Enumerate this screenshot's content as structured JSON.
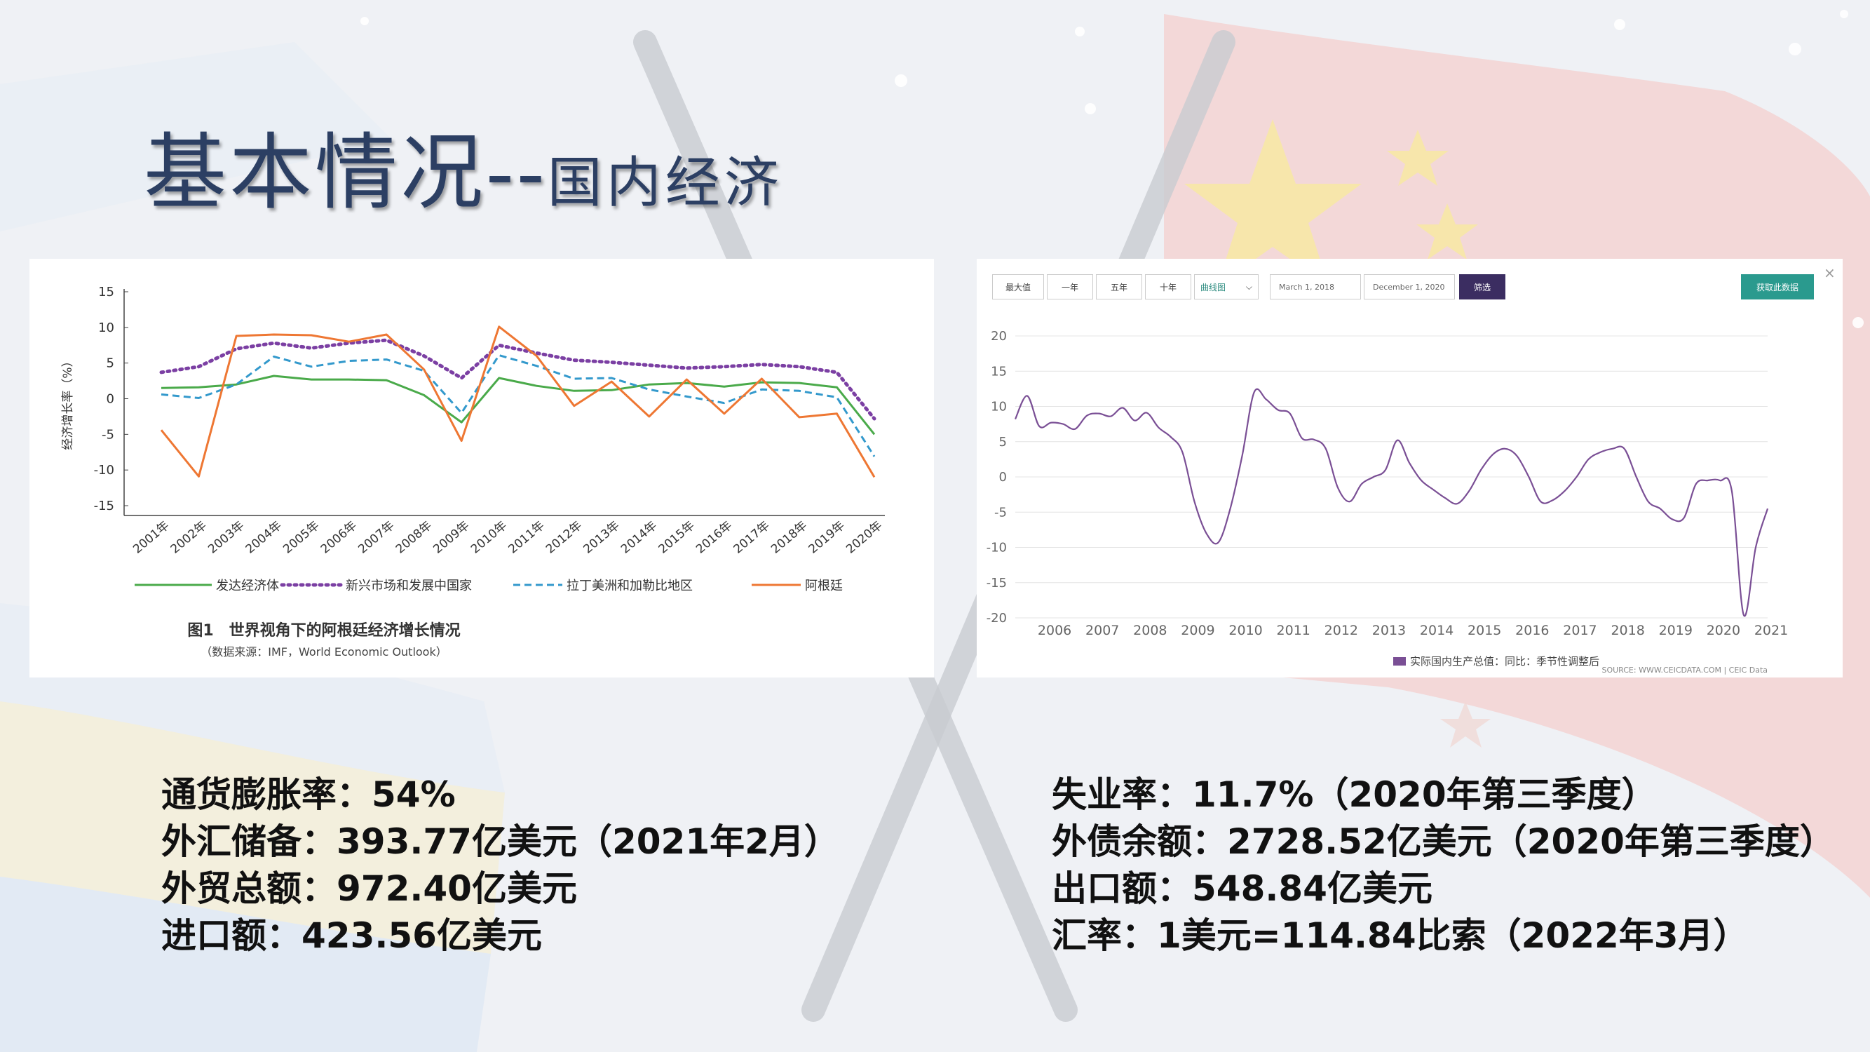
{
  "slide": {
    "title_main": "基本情况--",
    "title_sub": "国内经济"
  },
  "left_figure": {
    "ylabel": "经济增长率（%）",
    "caption": "图1　世界视角下的阿根廷经济增长情况",
    "source": "（数据来源：IMF，World Economic Outlook）"
  },
  "right_figure": {
    "toolbar": {
      "btn_max": "最大值",
      "btn_1y": "一年",
      "btn_5y": "五年",
      "btn_10y": "十年",
      "chart_type_select": "曲线图",
      "start_date": "March 1, 2018",
      "end_date": "December 1, 2020",
      "filter_button": "筛选",
      "get_data_button": "获取此数据"
    },
    "close_icon": "close-icon",
    "source": "SOURCE: WWW.CEICDATA.COM | CEIC Data"
  },
  "facts_left": [
    {
      "label": "通货膨胀率：",
      "value": "54%"
    },
    {
      "label": "外汇储备：",
      "value": "393.77亿美元（2021年2月）"
    },
    {
      "label": "外贸总额：",
      "value": "972.40亿美元"
    },
    {
      "label": "进口额：",
      "value": "423.56亿美元"
    }
  ],
  "facts_right": [
    {
      "label": "失业率：",
      "value": "11.7%（2020年第三季度）"
    },
    {
      "label": "外债余额：",
      "value": "2728.52亿美元（2020年第三季度）"
    },
    {
      "label": "出口额：",
      "value": "548.84亿美元"
    },
    {
      "label": "汇率：",
      "value": "1美元=114.84比索（2022年3月）"
    }
  ],
  "chart_data": [
    {
      "type": "line",
      "title": "图1　世界视角下的阿根廷经济增长情况",
      "ylabel": "经济增长率（%）",
      "ylim": [
        -15,
        15
      ],
      "yticks": [
        15,
        10,
        5,
        0,
        -5,
        -10,
        -15
      ],
      "categories": [
        "2001年",
        "2002年",
        "2003年",
        "2004年",
        "2005年",
        "2006年",
        "2007年",
        "2008年",
        "2009年",
        "2010年",
        "2011年",
        "2012年",
        "2013年",
        "2014年",
        "2015年",
        "2016年",
        "2017年",
        "2018年",
        "2019年",
        "2020年"
      ],
      "legend_position": "bottom",
      "series": [
        {
          "name": "发达经济体",
          "color": "#4aaa4a",
          "style": "solid",
          "values": [
            1.5,
            1.6,
            2.0,
            3.2,
            2.7,
            2.7,
            2.6,
            0.5,
            -3.3,
            2.9,
            1.8,
            1.1,
            1.2,
            2.0,
            2.2,
            1.7,
            2.3,
            2.2,
            1.6,
            -5.0
          ]
        },
        {
          "name": "新兴市场和发展中国家",
          "color": "#7b3fa3",
          "style": "dotted",
          "values": [
            3.7,
            4.5,
            7.0,
            7.8,
            7.1,
            7.8,
            8.2,
            6.0,
            2.9,
            7.5,
            6.4,
            5.4,
            5.1,
            4.7,
            4.3,
            4.5,
            4.8,
            4.5,
            3.7,
            -2.8
          ]
        },
        {
          "name": "拉丁美洲和加勒比地区",
          "color": "#3399cc",
          "style": "dashed",
          "values": [
            0.6,
            0.1,
            2.0,
            5.9,
            4.5,
            5.3,
            5.5,
            3.9,
            -2.0,
            6.1,
            4.6,
            2.8,
            2.9,
            1.3,
            0.3,
            -0.6,
            1.3,
            1.1,
            0.2,
            -8.1
          ]
        },
        {
          "name": "阿根廷",
          "color": "#ee7733",
          "style": "solid",
          "values": [
            -4.4,
            -10.9,
            8.8,
            9.0,
            8.9,
            8.0,
            9.0,
            4.1,
            -5.9,
            10.1,
            6.0,
            -1.0,
            2.4,
            -2.5,
            2.7,
            -2.1,
            2.8,
            -2.6,
            -2.1,
            -11.0
          ]
        }
      ]
    },
    {
      "type": "line",
      "ylim": [
        -20,
        20
      ],
      "yticks": [
        20,
        15,
        10,
        5,
        0,
        -5,
        -10,
        -15,
        -20
      ],
      "xticks": [
        "2006",
        "2007",
        "2008",
        "2009",
        "2010",
        "2011",
        "2012",
        "2013",
        "2014",
        "2015",
        "2016",
        "2017",
        "2018",
        "2019",
        "2020",
        "2021"
      ],
      "grid": true,
      "legend_position": "bottom",
      "series": [
        {
          "name": "实际国内生产总值：同比：季节性调整后",
          "color": "#7a4f95",
          "x": [
            2005.25,
            2005.5,
            2005.75,
            2006.0,
            2006.25,
            2006.5,
            2006.75,
            2007.0,
            2007.25,
            2007.5,
            2007.75,
            2008.0,
            2008.25,
            2008.5,
            2008.75,
            2009.0,
            2009.25,
            2009.5,
            2009.75,
            2010.0,
            2010.25,
            2010.5,
            2010.75,
            2011.0,
            2011.25,
            2011.5,
            2011.75,
            2012.0,
            2012.25,
            2012.5,
            2012.75,
            2013.0,
            2013.25,
            2013.5,
            2013.75,
            2014.0,
            2014.25,
            2014.5,
            2014.75,
            2015.0,
            2015.25,
            2015.5,
            2015.75,
            2016.0,
            2016.25,
            2016.5,
            2016.75,
            2017.0,
            2017.25,
            2017.5,
            2017.75,
            2018.0,
            2018.25,
            2018.5,
            2018.75,
            2019.0,
            2019.25,
            2019.5,
            2019.75,
            2020.0,
            2020.25,
            2020.5,
            2020.75,
            2021.0
          ],
          "values": [
            8.2,
            11.5,
            7.2,
            7.7,
            7.5,
            6.8,
            8.7,
            9.0,
            8.6,
            9.8,
            8.0,
            9.1,
            7.0,
            5.7,
            3.5,
            -3.5,
            -8.0,
            -9.3,
            -4.5,
            3.0,
            12.0,
            11.0,
            9.5,
            9.0,
            5.5,
            5.3,
            4.0,
            -1.5,
            -3.5,
            -1.0,
            0.0,
            1.0,
            5.2,
            2.0,
            -0.5,
            -1.8,
            -3.0,
            -3.8,
            -2.0,
            1.0,
            3.2,
            4.0,
            3.0,
            0.0,
            -3.5,
            -3.3,
            -2.0,
            0.0,
            2.5,
            3.5,
            4.0,
            4.0,
            0.0,
            -3.5,
            -4.5,
            -6.0,
            -5.8,
            -1.0,
            -0.5,
            -0.5,
            -2.0,
            -19.6,
            -10.0,
            -4.5
          ]
        }
      ]
    }
  ]
}
